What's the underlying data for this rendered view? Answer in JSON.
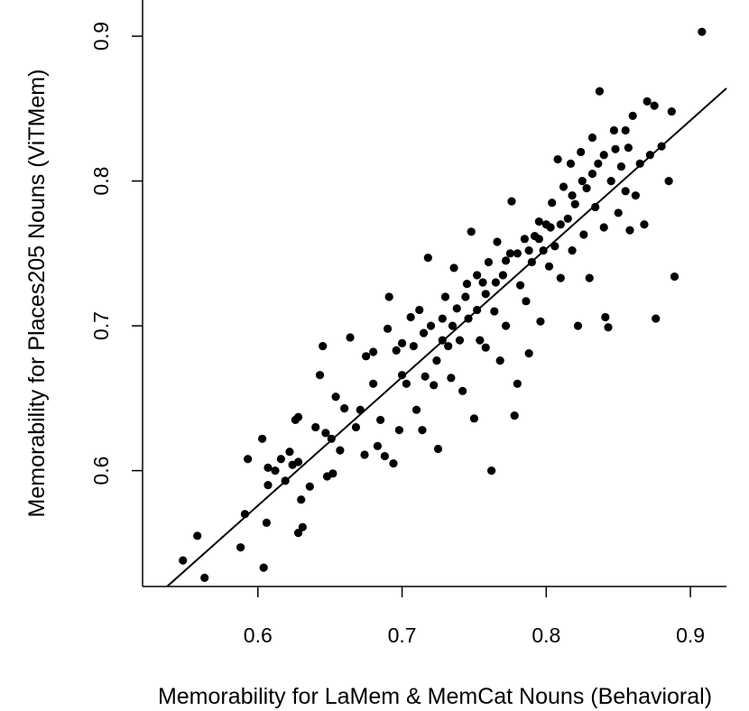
{
  "chart_data": {
    "type": "scatter",
    "title": "",
    "xlabel": "Memorability for LaMem & MemCat Nouns (Behavioral)",
    "ylabel": "Memorability for Places205 Nouns (ViTMem)",
    "xlim": [
      0.52,
      0.925
    ],
    "ylim": [
      0.52,
      0.925
    ],
    "xticks": [
      0.6,
      0.7,
      0.8,
      0.9
    ],
    "yticks": [
      0.6,
      0.7,
      0.8,
      0.9
    ],
    "xtick_labels": [
      "0.6",
      "0.7",
      "0.8",
      "0.9"
    ],
    "ytick_labels": [
      "0.6",
      "0.7",
      "0.8",
      "0.9"
    ],
    "grid": false,
    "point_color": "#000000",
    "regression_line": {
      "x": [
        0.537,
        0.925
      ],
      "y": [
        0.52,
        0.864
      ]
    },
    "points": [
      [
        0.908,
        0.903
      ],
      [
        0.548,
        0.538
      ],
      [
        0.558,
        0.555
      ],
      [
        0.563,
        0.526
      ],
      [
        0.588,
        0.547
      ],
      [
        0.591,
        0.57
      ],
      [
        0.593,
        0.608
      ],
      [
        0.603,
        0.622
      ],
      [
        0.604,
        0.533
      ],
      [
        0.606,
        0.564
      ],
      [
        0.607,
        0.602
      ],
      [
        0.607,
        0.59
      ],
      [
        0.612,
        0.6
      ],
      [
        0.616,
        0.608
      ],
      [
        0.619,
        0.593
      ],
      [
        0.622,
        0.613
      ],
      [
        0.624,
        0.604
      ],
      [
        0.626,
        0.635
      ],
      [
        0.628,
        0.557
      ],
      [
        0.628,
        0.606
      ],
      [
        0.63,
        0.58
      ],
      [
        0.631,
        0.561
      ],
      [
        0.628,
        0.637
      ],
      [
        0.636,
        0.589
      ],
      [
        0.64,
        0.63
      ],
      [
        0.643,
        0.666
      ],
      [
        0.645,
        0.686
      ],
      [
        0.647,
        0.626
      ],
      [
        0.648,
        0.596
      ],
      [
        0.652,
        0.598
      ],
      [
        0.651,
        0.622
      ],
      [
        0.654,
        0.651
      ],
      [
        0.657,
        0.614
      ],
      [
        0.66,
        0.643
      ],
      [
        0.664,
        0.692
      ],
      [
        0.668,
        0.63
      ],
      [
        0.671,
        0.642
      ],
      [
        0.674,
        0.611
      ],
      [
        0.675,
        0.679
      ],
      [
        0.68,
        0.66
      ],
      [
        0.68,
        0.682
      ],
      [
        0.683,
        0.617
      ],
      [
        0.685,
        0.635
      ],
      [
        0.688,
        0.61
      ],
      [
        0.69,
        0.698
      ],
      [
        0.691,
        0.72
      ],
      [
        0.694,
        0.605
      ],
      [
        0.696,
        0.683
      ],
      [
        0.698,
        0.628
      ],
      [
        0.7,
        0.666
      ],
      [
        0.703,
        0.66
      ],
      [
        0.706,
        0.706
      ],
      [
        0.708,
        0.686
      ],
      [
        0.71,
        0.642
      ],
      [
        0.712,
        0.711
      ],
      [
        0.714,
        0.628
      ],
      [
        0.716,
        0.665
      ],
      [
        0.718,
        0.747
      ],
      [
        0.72,
        0.7
      ],
      [
        0.722,
        0.659
      ],
      [
        0.724,
        0.676
      ],
      [
        0.725,
        0.615
      ],
      [
        0.728,
        0.69
      ],
      [
        0.73,
        0.72
      ],
      [
        0.732,
        0.686
      ],
      [
        0.734,
        0.664
      ],
      [
        0.736,
        0.74
      ],
      [
        0.738,
        0.712
      ],
      [
        0.74,
        0.69
      ],
      [
        0.742,
        0.655
      ],
      [
        0.745,
        0.729
      ],
      [
        0.746,
        0.705
      ],
      [
        0.748,
        0.765
      ],
      [
        0.75,
        0.636
      ],
      [
        0.752,
        0.711
      ],
      [
        0.754,
        0.69
      ],
      [
        0.756,
        0.73
      ],
      [
        0.758,
        0.685
      ],
      [
        0.76,
        0.744
      ],
      [
        0.762,
        0.6
      ],
      [
        0.764,
        0.71
      ],
      [
        0.766,
        0.758
      ],
      [
        0.768,
        0.676
      ],
      [
        0.77,
        0.735
      ],
      [
        0.772,
        0.7
      ],
      [
        0.775,
        0.75
      ],
      [
        0.776,
        0.786
      ],
      [
        0.778,
        0.638
      ],
      [
        0.78,
        0.66
      ],
      [
        0.782,
        0.728
      ],
      [
        0.785,
        0.76
      ],
      [
        0.786,
        0.717
      ],
      [
        0.788,
        0.681
      ],
      [
        0.79,
        0.744
      ],
      [
        0.792,
        0.762
      ],
      [
        0.795,
        0.772
      ],
      [
        0.796,
        0.703
      ],
      [
        0.798,
        0.752
      ],
      [
        0.8,
        0.77
      ],
      [
        0.802,
        0.741
      ],
      [
        0.804,
        0.785
      ],
      [
        0.806,
        0.755
      ],
      [
        0.808,
        0.815
      ],
      [
        0.81,
        0.733
      ],
      [
        0.812,
        0.796
      ],
      [
        0.815,
        0.774
      ],
      [
        0.817,
        0.812
      ],
      [
        0.818,
        0.752
      ],
      [
        0.82,
        0.784
      ],
      [
        0.822,
        0.7
      ],
      [
        0.824,
        0.82
      ],
      [
        0.826,
        0.763
      ],
      [
        0.828,
        0.795
      ],
      [
        0.83,
        0.733
      ],
      [
        0.832,
        0.83
      ],
      [
        0.834,
        0.782
      ],
      [
        0.836,
        0.812
      ],
      [
        0.837,
        0.862
      ],
      [
        0.84,
        0.768
      ],
      [
        0.841,
        0.706
      ],
      [
        0.843,
        0.699
      ],
      [
        0.845,
        0.8
      ],
      [
        0.847,
        0.835
      ],
      [
        0.85,
        0.778
      ],
      [
        0.852,
        0.81
      ],
      [
        0.855,
        0.793
      ],
      [
        0.857,
        0.823
      ],
      [
        0.858,
        0.766
      ],
      [
        0.86,
        0.845
      ],
      [
        0.862,
        0.79
      ],
      [
        0.865,
        0.812
      ],
      [
        0.868,
        0.77
      ],
      [
        0.87,
        0.855
      ],
      [
        0.872,
        0.818
      ],
      [
        0.875,
        0.852
      ],
      [
        0.876,
        0.705
      ],
      [
        0.88,
        0.824
      ],
      [
        0.885,
        0.8
      ],
      [
        0.887,
        0.848
      ],
      [
        0.889,
        0.734
      ],
      [
        0.7,
        0.688
      ],
      [
        0.715,
        0.695
      ],
      [
        0.728,
        0.705
      ],
      [
        0.735,
        0.7
      ],
      [
        0.744,
        0.72
      ],
      [
        0.752,
        0.735
      ],
      [
        0.758,
        0.722
      ],
      [
        0.765,
        0.73
      ],
      [
        0.772,
        0.745
      ],
      [
        0.78,
        0.75
      ],
      [
        0.788,
        0.752
      ],
      [
        0.795,
        0.76
      ],
      [
        0.803,
        0.768
      ],
      [
        0.81,
        0.77
      ],
      [
        0.818,
        0.79
      ],
      [
        0.825,
        0.8
      ],
      [
        0.832,
        0.805
      ],
      [
        0.84,
        0.818
      ],
      [
        0.848,
        0.822
      ],
      [
        0.855,
        0.835
      ]
    ]
  }
}
